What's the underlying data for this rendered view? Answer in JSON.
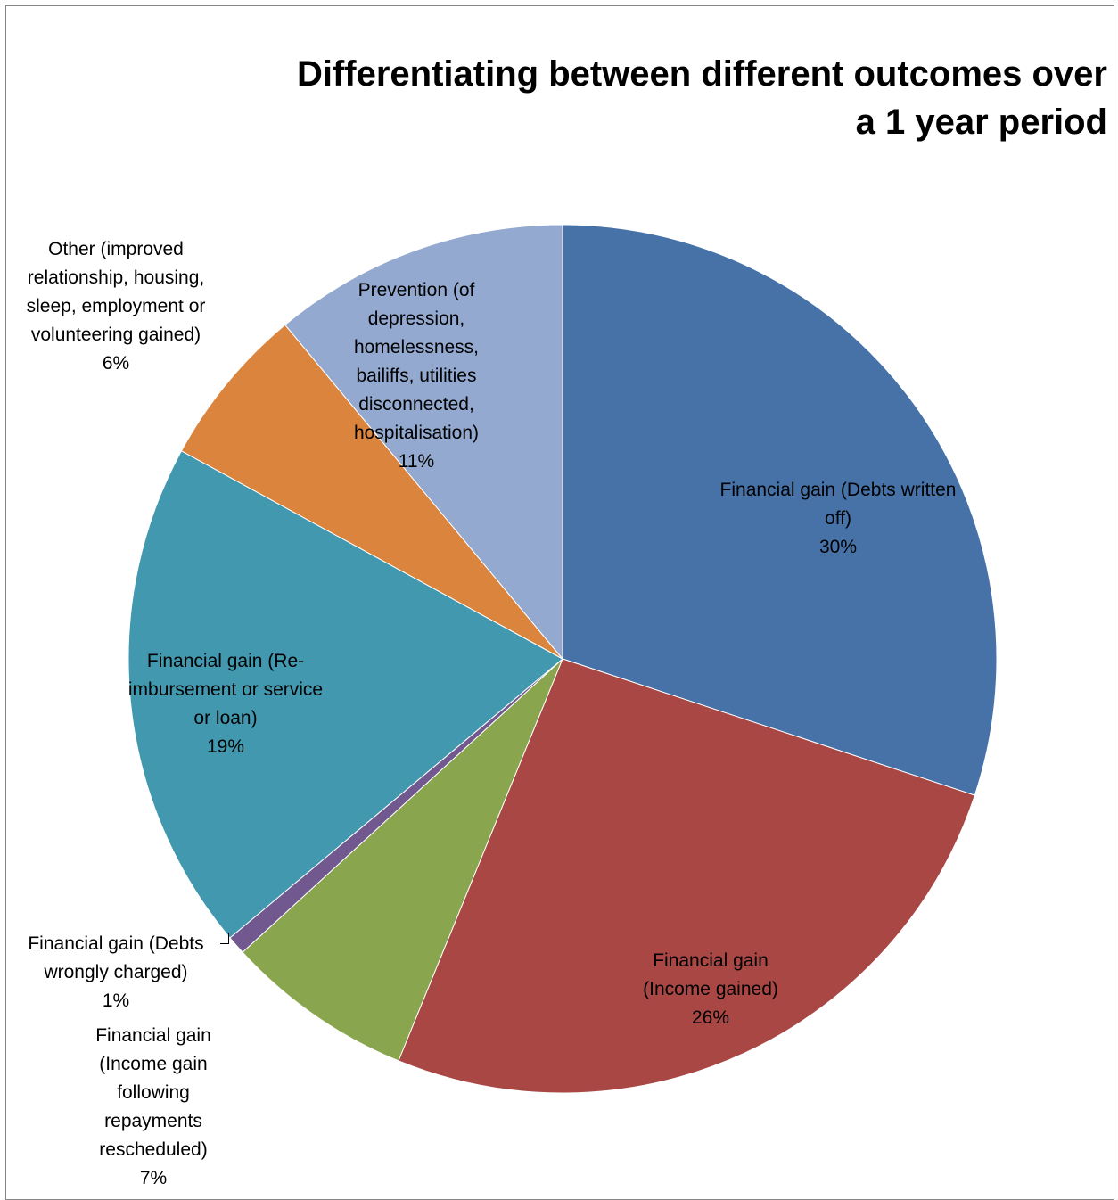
{
  "chart_data": {
    "type": "pie",
    "title": [
      "Differentiating between different outcomes over",
      "a 1 year period"
    ],
    "slices": [
      {
        "label": "Financial gain (Debts written off)",
        "display": "30%",
        "value": 30,
        "color": "#4672A8"
      },
      {
        "label": "Financial gain (Income gained)",
        "display": "26%",
        "value": 26,
        "color": "#A84744"
      },
      {
        "label": "Financial gain (Income gain following repayments rescheduled)",
        "display": "7%",
        "value": 7,
        "color": "#89A54E"
      },
      {
        "label": "Financial gain (Debts wrongly charged)",
        "display": "1%",
        "value": 0.7,
        "color": "#71588F"
      },
      {
        "label": "Financial gain (Re-imbursement or service or loan)",
        "display": "19%",
        "value": 19,
        "color": "#4198AF"
      },
      {
        "label": "Other (improved relationship, housing, sleep, employment or volunteering gained)",
        "display": "6%",
        "value": 6,
        "color": "#DB843D"
      },
      {
        "label": "Prevention (of depression, homelessness, bailiffs, utilities disconnected, hospitalisation)",
        "display": "11%",
        "value": 11,
        "color": "#93A9CF"
      }
    ],
    "start_angle": "12 o'clock",
    "direction": "clockwise",
    "legend": "none"
  }
}
